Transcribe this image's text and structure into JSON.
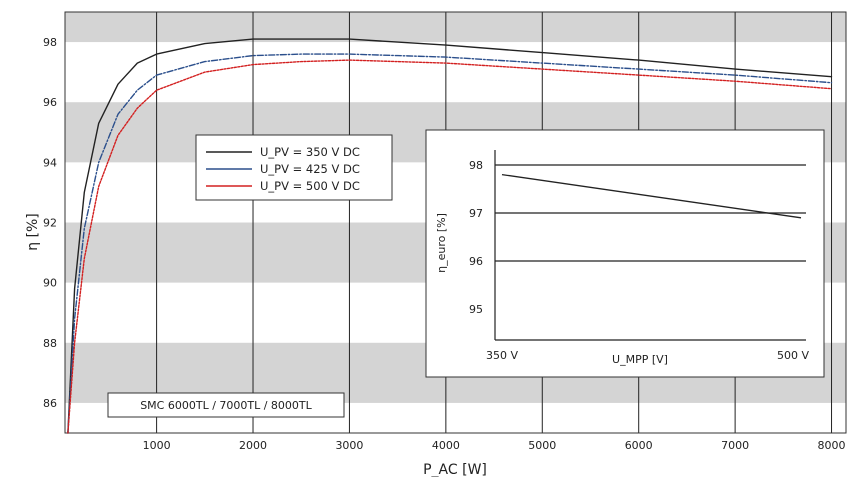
{
  "chart_data": [
    {
      "type": "line",
      "title": "",
      "xlabel": "P_AC [W]",
      "ylabel": "η [%]",
      "xlim": [
        50,
        8150
      ],
      "ylim": [
        85,
        99
      ],
      "x_ticks": [
        "1000",
        "2000",
        "3000",
        "4000",
        "5000",
        "6000",
        "7000",
        "8000"
      ],
      "y_ticks": [
        "86",
        "88",
        "90",
        "92",
        "94",
        "96",
        "98"
      ],
      "grid": "vertical lines at each x tick; alternating grey horizontal bands",
      "legend_position": "upper-left-center",
      "annotation": "SMC 6000TL / 7000TL / 8000TL",
      "series": [
        {
          "name": "U_PV = 350 V DC",
          "color": "#222222",
          "x": [
            80,
            150,
            250,
            400,
            600,
            800,
            1000,
            1500,
            2000,
            2500,
            3000,
            3500,
            4000,
            5000,
            6000,
            7000,
            8000
          ],
          "y": [
            85.0,
            89.8,
            93.0,
            95.3,
            96.6,
            97.3,
            97.6,
            97.95,
            98.1,
            98.1,
            98.1,
            98.0,
            97.9,
            97.65,
            97.4,
            97.1,
            96.85
          ]
        },
        {
          "name": "U_PV = 425 V DC",
          "color": "#2b4f8c",
          "x": [
            80,
            150,
            250,
            400,
            600,
            800,
            1000,
            1500,
            2000,
            2500,
            3000,
            3500,
            4000,
            5000,
            6000,
            7000,
            8000
          ],
          "y": [
            85.0,
            88.8,
            91.8,
            94.0,
            95.6,
            96.4,
            96.9,
            97.35,
            97.55,
            97.6,
            97.6,
            97.55,
            97.5,
            97.3,
            97.1,
            96.9,
            96.65
          ]
        },
        {
          "name": "U_PV = 500 V DC",
          "color": "#d32020",
          "x": [
            80,
            150,
            250,
            400,
            600,
            800,
            1000,
            1500,
            2000,
            2500,
            3000,
            3500,
            4000,
            5000,
            6000,
            7000,
            8000
          ],
          "y": [
            85.0,
            88.0,
            90.8,
            93.2,
            94.9,
            95.8,
            96.4,
            97.0,
            97.25,
            97.35,
            97.4,
            97.35,
            97.3,
            97.1,
            96.9,
            96.7,
            96.45
          ]
        }
      ]
    },
    {
      "type": "line",
      "title": "",
      "xlabel": "U_MPP [V]",
      "ylabel": "η_euro [%]",
      "xlim": [
        350,
        500
      ],
      "ylim": [
        95,
        98
      ],
      "x_ticks": [
        "350 V",
        "500 V"
      ],
      "y_ticks": [
        "95",
        "96",
        "97",
        "98"
      ],
      "grid": "horizontal lines",
      "series": [
        {
          "x": [
            350,
            500
          ],
          "y": [
            97.8,
            96.9
          ],
          "color": "#222222"
        }
      ]
    }
  ]
}
